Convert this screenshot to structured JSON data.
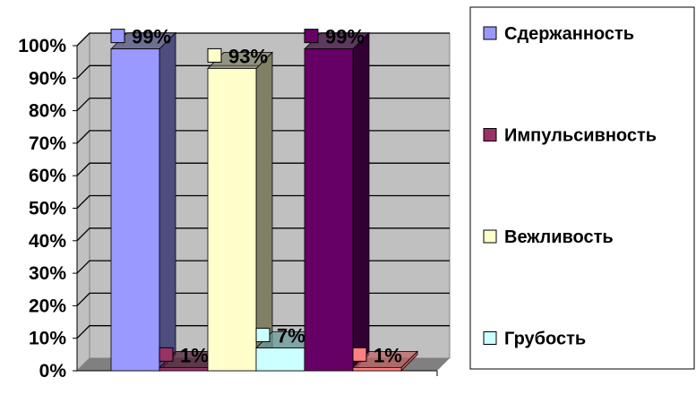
{
  "chart_data": {
    "type": "bar",
    "three_d": true,
    "categories": [
      "Сдержанность",
      "Импульсивность",
      "Вежливость",
      "Грубость",
      "",
      ""
    ],
    "values": [
      99,
      1,
      93,
      7,
      99,
      1
    ],
    "data_labels": [
      "99%",
      "1%",
      "93%",
      "7%",
      "99%",
      "1%"
    ],
    "colors": [
      "#9999ff",
      "#993366",
      "#ffffcc",
      "#ccffff",
      "#660066",
      "#ff8080"
    ],
    "side_colors": [
      "#4d4d80",
      "#4d1a33",
      "#808066",
      "#669999",
      "#330033",
      "#c06060"
    ],
    "yticks": [
      "0%",
      "10%",
      "20%",
      "30%",
      "40%",
      "50%",
      "60%",
      "70%",
      "80%",
      "90%",
      "100%"
    ],
    "ylim": [
      0,
      100
    ],
    "grid": true,
    "wall_color": "#c0c0c0",
    "floor_color": "#808080",
    "legend": {
      "placement": "right",
      "entries": [
        {
          "label": "Сдержанность",
          "color": "#9999ff"
        },
        {
          "label": "Импульсивность",
          "color": "#993366"
        },
        {
          "label": "Вежливость",
          "color": "#ffffcc"
        },
        {
          "label": "Грубость",
          "color": "#ccffff"
        }
      ]
    }
  }
}
